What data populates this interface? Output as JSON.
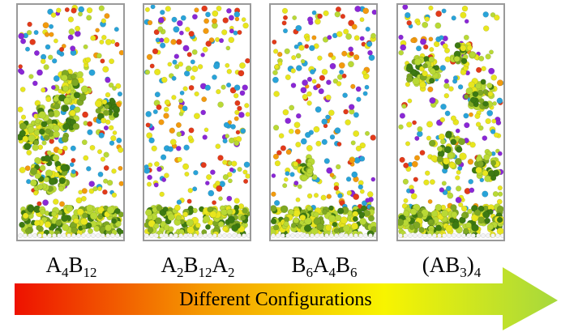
{
  "panels": [
    {
      "label_parts": [
        [
          "A",
          "4"
        ],
        [
          "B",
          "12"
        ]
      ]
    },
    {
      "label_parts": [
        [
          "A",
          "2"
        ],
        [
          "B",
          "12"
        ],
        [
          "A",
          "2"
        ]
      ]
    },
    {
      "label_parts": [
        [
          "B",
          "6"
        ],
        [
          "A",
          "4"
        ],
        [
          "B",
          "6"
        ]
      ]
    },
    {
      "label_parts": [
        [
          "(AB",
          "3"
        ],
        [
          ")",
          "4"
        ]
      ]
    }
  ],
  "arrow": {
    "text": "Different Configurations",
    "colors": [
      "#ee1100",
      "#f59b00",
      "#f8f400",
      "#a6d83d"
    ]
  },
  "colors": {
    "yellow": "#e8e61e",
    "yellow_green": "#b9d935",
    "green": "#7ea823",
    "dark_green": "#3d7a12",
    "blue": "#29a3d8",
    "orange": "#f29a0e",
    "red": "#e23a1a",
    "purple": "#8a27d6"
  }
}
